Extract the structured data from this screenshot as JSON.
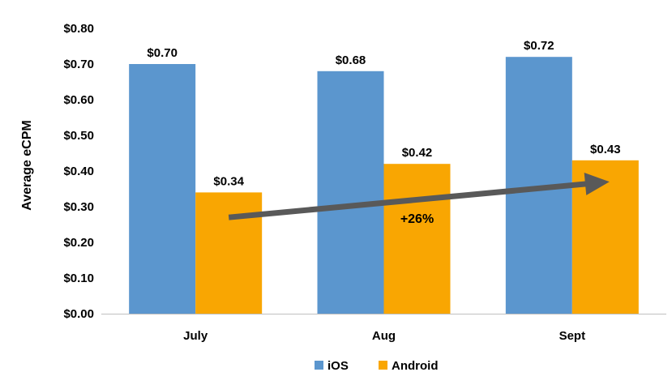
{
  "chart_data": {
    "type": "bar",
    "categories": [
      "July",
      "Aug",
      "Sept"
    ],
    "series": [
      {
        "name": "iOS",
        "color": "#5b96ce",
        "values": [
          0.7,
          0.68,
          0.72
        ],
        "labels": [
          "$0.70",
          "$0.68",
          "$0.72"
        ]
      },
      {
        "name": "Android",
        "color": "#f9a602",
        "values": [
          0.34,
          0.42,
          0.43
        ],
        "labels": [
          "$0.34",
          "$0.42",
          "$0.43"
        ]
      }
    ],
    "ylabel": "Average eCPM",
    "ylim": [
      0,
      0.8
    ],
    "yticks": [
      0.0,
      0.1,
      0.2,
      0.3,
      0.4,
      0.5,
      0.6,
      0.7,
      0.8
    ],
    "ytick_labels": [
      "$0.00",
      "$0.10",
      "$0.20",
      "$0.30",
      "$0.40",
      "$0.50",
      "$0.60",
      "$0.70",
      "$0.80"
    ],
    "grid": false,
    "legend_position": "bottom",
    "annotation": {
      "text": "+26%",
      "arrow_color": "#595959",
      "arrow_from": {
        "category": "July",
        "value": 0.27
      },
      "arrow_to": {
        "category": "Sept",
        "value": 0.37
      }
    }
  }
}
